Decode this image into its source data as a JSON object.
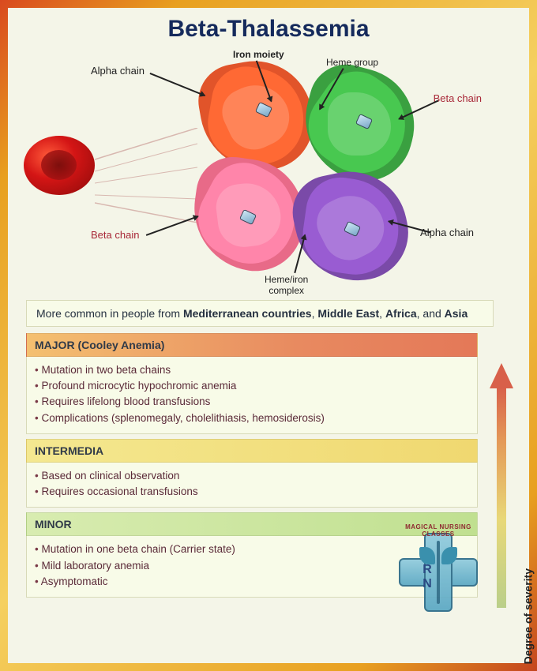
{
  "title": "Beta-Thalassemia",
  "diagram": {
    "labels": {
      "alpha_chain_top": "Alpha chain",
      "iron_moiety": "Iron moiety",
      "heme_group": "Heme group",
      "beta_chain_right": "Beta chain",
      "beta_chain_left": "Beta chain",
      "alpha_chain_bottom": "Alpha chain",
      "heme_iron_complex": "Heme/iron\ncomplex"
    },
    "subunit_colors": {
      "alpha_top": "#e1542a",
      "beta_right": "#3aa040",
      "beta_left": "#e86a88",
      "alpha_bottom": "#7a4aa8"
    },
    "rbc_colors": {
      "highlight": "#ff5a3a",
      "mid": "#d41515",
      "dark": "#8c0a0a"
    },
    "label_fontsize": 13
  },
  "info_intro_html": "More common in people from <b>Mediterranean countries</b>, <b>Middle East</b>, <b>Africa</b>, and <b>Asia</b>",
  "sections": [
    {
      "key": "major",
      "header": "MAJOR (Cooley Anemia)",
      "header_gradient": [
        "#f4c070",
        "#e47858"
      ],
      "bullets": [
        "Mutation in two beta chains",
        "Profound microcytic hypochromic anemia",
        "Requires lifelong blood transfusions",
        "Complications (splenomegaly, cholelithiasis, hemosiderosis)"
      ]
    },
    {
      "key": "intermedia",
      "header": "INTERMEDIA",
      "header_gradient": [
        "#f4e890",
        "#f0d870"
      ],
      "bullets": [
        "Based on clinical observation",
        "Requires occasional transfusions"
      ]
    },
    {
      "key": "minor",
      "header": "MINOR",
      "header_gradient": [
        "#d8ecb0",
        "#c0e090"
      ],
      "bullets": [
        "Mutation in one beta chain (Carrier state)",
        "Mild laboratory anemia",
        "Asymptomatic"
      ]
    }
  ],
  "severity_label": "Degree of severity",
  "severity_gradient": [
    "#bacf8a",
    "#e8d878",
    "#e49a58",
    "#d8604a"
  ],
  "logo": {
    "arc_text": "MAGICAL NURSING CLASSES",
    "letters": "R   N"
  },
  "colors": {
    "page_bg": "#f4f5e8",
    "frame_gradient": [
      "#d94a1f",
      "#e8a020",
      "#f5d060",
      "#e8a020",
      "#c4451f"
    ],
    "title_color": "#152a5c",
    "bullet_text": "#5a2a38",
    "info_bg": "#f8fbe8",
    "info_border": "#d8dab8"
  },
  "typography": {
    "title_fontsize": 30,
    "section_header_fontsize": 14,
    "bullet_fontsize": 13.5,
    "font_family": "Arial"
  }
}
